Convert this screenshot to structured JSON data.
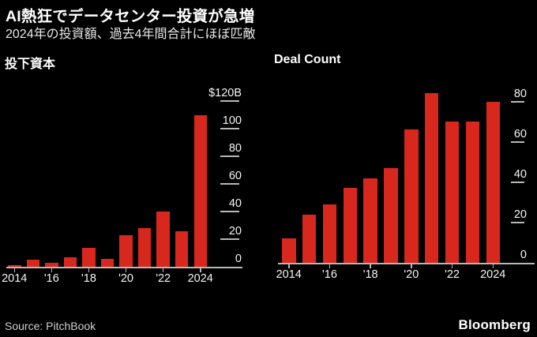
{
  "meta": {
    "background": "#000000",
    "bar_color": "#d8271d",
    "axis_color": "#b8b8b8",
    "label_color": "#f5f5f5"
  },
  "header": {
    "title": "AI熱狂でデータセンター投資が急増",
    "subtitle": "2024年の投資額、過去4年間合計にほぼ匹敵"
  },
  "footer": {
    "source": "Source: PitchBook",
    "brand": "Bloomberg"
  },
  "chart_data": [
    {
      "type": "bar",
      "title": "投下資本",
      "categories": [
        2014,
        2015,
        2016,
        2017,
        2018,
        2019,
        2020,
        2021,
        2022,
        2023,
        2024
      ],
      "values": [
        1,
        5,
        3,
        7,
        14,
        6,
        23,
        28,
        40,
        26,
        110
      ],
      "x_tick_labels": [
        "2014",
        "'16",
        "'18",
        "'20",
        "'22",
        "2024"
      ],
      "y_ticks": [
        {
          "value": 120,
          "label": "$120B"
        },
        {
          "value": 100,
          "label": "100"
        },
        {
          "value": 80,
          "label": "80"
        },
        {
          "value": 60,
          "label": "60"
        },
        {
          "value": 40,
          "label": "40"
        },
        {
          "value": 20,
          "label": "20"
        },
        {
          "value": 0,
          "label": "0"
        }
      ],
      "ylim": [
        0,
        120
      ],
      "grid": false,
      "legend": "none",
      "axis_side": "right"
    },
    {
      "type": "bar",
      "title": "Deal Count",
      "categories": [
        2014,
        2015,
        2016,
        2017,
        2018,
        2019,
        2020,
        2021,
        2022,
        2023,
        2024
      ],
      "values": [
        12,
        24,
        29,
        37,
        42,
        47,
        66,
        84,
        70,
        70,
        80
      ],
      "x_tick_labels": [
        "2014",
        "'16",
        "'18",
        "'20",
        "'22",
        "2024"
      ],
      "y_ticks": [
        {
          "value": 80,
          "label": "80"
        },
        {
          "value": 60,
          "label": "60"
        },
        {
          "value": 40,
          "label": "40"
        },
        {
          "value": 20,
          "label": "20"
        },
        {
          "value": 0,
          "label": "0"
        }
      ],
      "ylim": [
        0,
        85
      ],
      "grid": false,
      "legend": "none",
      "axis_side": "right"
    }
  ]
}
